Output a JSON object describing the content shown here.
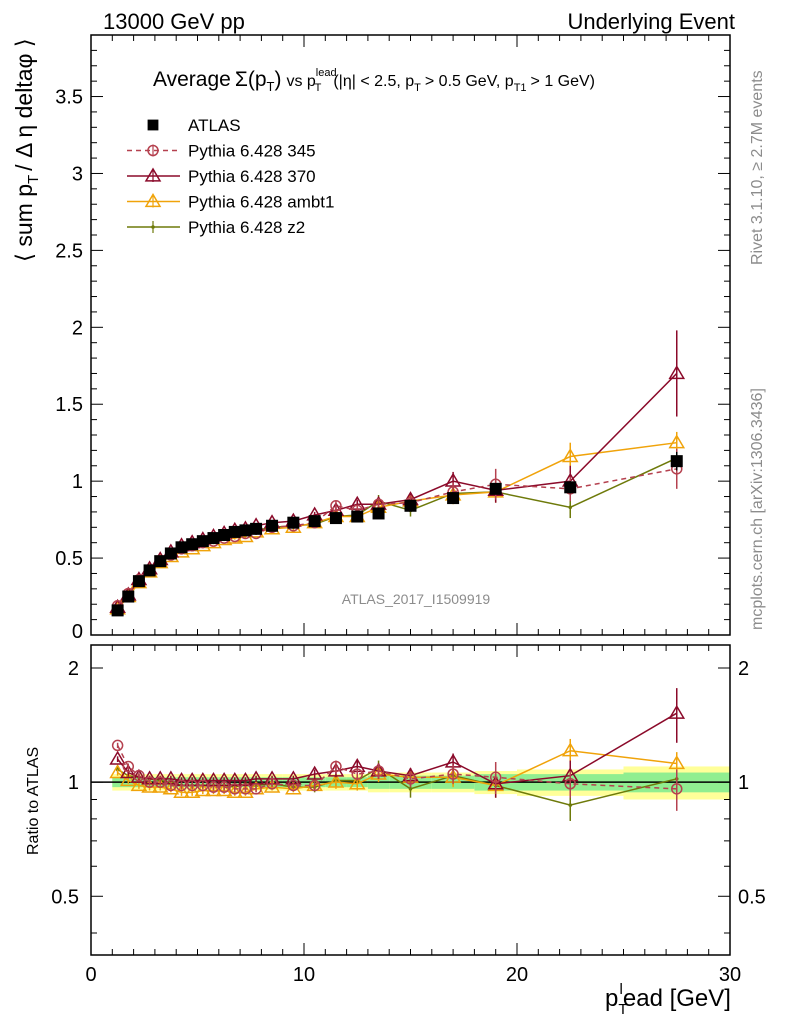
{
  "header": {
    "left": "13000 GeV pp",
    "right": "Underlying Event"
  },
  "side": {
    "rivet": "Rivet 3.1.10, ≥ 2.7M events",
    "mcplots": "mcplots.cern.ch [arXiv:1306.3436]"
  },
  "title": {
    "prefix": "Average",
    "sigma": "Σ(p",
    "t_sub": "T",
    "close": ")",
    "vs": "vs p",
    "lead_sup": "lead",
    "lead_sub": "T",
    "cuts1": "(|η| < 2.5, p",
    "cuts_sub1": "T",
    "cuts2": "> 0.5 GeV, p",
    "cuts_sub2": "T1",
    "cuts3": "> 1 GeV)"
  },
  "watermark": "ATLAS_2017_I1509919",
  "axes": {
    "ylabel_main": "⟨ sum p",
    "ylabel_main_sub": "T",
    "ylabel_main_rest": "/ Δ η deltaφ ⟩",
    "ylabel_ratio": "Ratio to ATLAS",
    "xlabel_p": "p",
    "xlabel_sub": "T",
    "xlabel_sup": "l",
    "xlabel_rest": "ead [GeV]"
  },
  "colors": {
    "atlas": "#000000",
    "py345": "#b5414f",
    "py370": "#8b0a2a",
    "ambt1": "#f0a30a",
    "z2": "#6e7a0a",
    "band_inner": "#90ee90",
    "band_outer": "#ffff99"
  },
  "chart_data": [
    {
      "type": "scatter",
      "panel": "main",
      "xlim": [
        0,
        30
      ],
      "ylim": [
        0,
        3.9
      ],
      "x_ticks": [
        "0",
        "10",
        "20",
        "30"
      ],
      "y_ticks": [
        "0.5",
        "1",
        "1.5",
        "2",
        "2.5",
        "3",
        "3.5"
      ],
      "x": [
        1.25,
        1.75,
        2.25,
        2.75,
        3.25,
        3.75,
        4.25,
        4.75,
        5.25,
        5.75,
        6.25,
        6.75,
        7.25,
        7.75,
        8.5,
        9.5,
        10.5,
        11.5,
        12.5,
        13.5,
        15,
        17,
        19,
        22.5,
        27.5
      ],
      "series": [
        {
          "name": "ATLAS",
          "key": "atlas",
          "marker": "square",
          "values": [
            0.16,
            0.25,
            0.35,
            0.42,
            0.48,
            0.53,
            0.57,
            0.59,
            0.61,
            0.63,
            0.65,
            0.67,
            0.68,
            0.69,
            0.71,
            0.73,
            0.74,
            0.76,
            0.77,
            0.79,
            0.84,
            0.89,
            0.95,
            0.96,
            1.13
          ],
          "errors": [
            0.01,
            0.01,
            0.01,
            0.01,
            0.01,
            0.01,
            0.01,
            0.01,
            0.01,
            0.01,
            0.01,
            0.01,
            0.01,
            0.01,
            0.01,
            0.01,
            0.01,
            0.01,
            0.01,
            0.02,
            0.02,
            0.02,
            0.03,
            0.04,
            0.06
          ]
        },
        {
          "name": "Pythia 6.428 345",
          "key": "py345",
          "marker": "circle",
          "dashed": true,
          "values": [
            0.19,
            0.27,
            0.36,
            0.42,
            0.48,
            0.52,
            0.56,
            0.58,
            0.6,
            0.61,
            0.63,
            0.64,
            0.66,
            0.66,
            0.7,
            0.71,
            0.73,
            0.84,
            0.81,
            0.85,
            0.86,
            0.93,
            0.98,
            0.95,
            1.08
          ],
          "errors": [
            0.01,
            0.01,
            0.01,
            0.01,
            0.01,
            0.01,
            0.01,
            0.01,
            0.01,
            0.01,
            0.01,
            0.01,
            0.01,
            0.01,
            0.01,
            0.02,
            0.02,
            0.03,
            0.03,
            0.04,
            0.05,
            0.06,
            0.1,
            0.08,
            0.13
          ]
        },
        {
          "name": "Pythia 6.428 370",
          "key": "py370",
          "marker": "triangle",
          "values": [
            0.18,
            0.26,
            0.36,
            0.43,
            0.49,
            0.54,
            0.58,
            0.6,
            0.62,
            0.64,
            0.66,
            0.68,
            0.69,
            0.71,
            0.73,
            0.74,
            0.78,
            0.81,
            0.85,
            0.85,
            0.88,
            1.0,
            0.94,
            1.0,
            1.7
          ],
          "errors": [
            0.01,
            0.01,
            0.01,
            0.01,
            0.01,
            0.01,
            0.01,
            0.01,
            0.01,
            0.01,
            0.01,
            0.01,
            0.01,
            0.01,
            0.01,
            0.02,
            0.02,
            0.03,
            0.03,
            0.04,
            0.04,
            0.06,
            0.08,
            0.1,
            0.28
          ]
        },
        {
          "name": "Pythia 6.428 ambt1",
          "key": "ambt1",
          "marker": "triangle",
          "values": [
            0.17,
            0.25,
            0.34,
            0.41,
            0.47,
            0.51,
            0.54,
            0.56,
            0.58,
            0.6,
            0.62,
            0.63,
            0.64,
            0.67,
            0.69,
            0.7,
            0.73,
            0.77,
            0.77,
            0.83,
            0.87,
            0.91,
            0.93,
            1.16,
            1.25
          ],
          "errors": [
            0.01,
            0.01,
            0.01,
            0.01,
            0.01,
            0.01,
            0.01,
            0.01,
            0.01,
            0.01,
            0.01,
            0.01,
            0.01,
            0.01,
            0.01,
            0.02,
            0.02,
            0.03,
            0.03,
            0.04,
            0.04,
            0.06,
            0.07,
            0.09,
            0.07
          ]
        },
        {
          "name": "Pythia 6.428 z2",
          "key": "z2",
          "marker": "dot",
          "values": [
            0.17,
            0.26,
            0.36,
            0.43,
            0.49,
            0.53,
            0.56,
            0.58,
            0.6,
            0.62,
            0.64,
            0.65,
            0.67,
            0.68,
            0.7,
            0.71,
            0.72,
            0.77,
            0.78,
            0.87,
            0.81,
            0.92,
            0.93,
            0.83,
            1.15
          ],
          "errors": [
            0.01,
            0.01,
            0.01,
            0.01,
            0.01,
            0.01,
            0.01,
            0.01,
            0.01,
            0.01,
            0.01,
            0.01,
            0.01,
            0.01,
            0.01,
            0.02,
            0.02,
            0.03,
            0.03,
            0.04,
            0.04,
            0.05,
            0.06,
            0.07,
            0.1
          ]
        }
      ]
    },
    {
      "type": "scatter",
      "panel": "ratio",
      "ylabel": "Ratio to ATLAS",
      "xlim": [
        0,
        30
      ],
      "ylim": [
        0.35,
        2.3
      ],
      "log_y": true,
      "x_ticks": [
        "0",
        "10",
        "20",
        "30"
      ],
      "y_ticks": [
        "0.5",
        "1",
        "2"
      ],
      "band_edges": [
        1,
        1.5,
        2,
        2.5,
        3,
        3.5,
        4,
        4.5,
        5,
        5.5,
        6,
        6.5,
        7,
        7.5,
        8,
        9,
        10,
        11,
        12,
        13,
        14,
        16,
        18,
        20,
        25,
        30
      ],
      "band_inner": [
        0.03,
        0.03,
        0.03,
        0.03,
        0.03,
        0.03,
        0.03,
        0.03,
        0.03,
        0.03,
        0.03,
        0.03,
        0.03,
        0.03,
        0.03,
        0.03,
        0.03,
        0.03,
        0.03,
        0.04,
        0.04,
        0.04,
        0.05,
        0.05,
        0.06
      ],
      "band_outer": [
        0.05,
        0.05,
        0.05,
        0.05,
        0.05,
        0.05,
        0.05,
        0.05,
        0.05,
        0.05,
        0.05,
        0.05,
        0.05,
        0.05,
        0.05,
        0.05,
        0.05,
        0.05,
        0.05,
        0.06,
        0.06,
        0.06,
        0.07,
        0.08,
        0.1
      ],
      "x": [
        1.25,
        1.75,
        2.25,
        2.75,
        3.25,
        3.75,
        4.25,
        4.75,
        5.25,
        5.75,
        6.25,
        6.75,
        7.25,
        7.75,
        8.5,
        9.5,
        10.5,
        11.5,
        12.5,
        13.5,
        15,
        17,
        19,
        22.5,
        27.5
      ],
      "series": [
        {
          "name": "Pythia 6.428 345",
          "key": "py345",
          "marker": "circle",
          "dashed": true,
          "values": [
            1.25,
            1.1,
            1.04,
            1.0,
            1.0,
            0.98,
            0.98,
            0.98,
            0.98,
            0.97,
            0.97,
            0.96,
            0.96,
            0.96,
            0.99,
            0.98,
            0.98,
            1.1,
            1.05,
            1.07,
            1.02,
            1.05,
            1.03,
            0.99,
            0.96
          ],
          "errors": [
            0.02,
            0.02,
            0.02,
            0.02,
            0.02,
            0.02,
            0.02,
            0.02,
            0.02,
            0.02,
            0.02,
            0.02,
            0.02,
            0.02,
            0.02,
            0.02,
            0.03,
            0.04,
            0.04,
            0.05,
            0.05,
            0.06,
            0.1,
            0.08,
            0.12
          ]
        },
        {
          "name": "Pythia 6.428 370",
          "key": "py370",
          "marker": "triangle",
          "values": [
            1.15,
            1.06,
            1.03,
            1.02,
            1.02,
            1.02,
            1.01,
            1.01,
            1.01,
            1.01,
            1.01,
            1.01,
            1.01,
            1.02,
            1.02,
            1.02,
            1.05,
            1.07,
            1.1,
            1.07,
            1.04,
            1.13,
            0.99,
            1.04,
            1.52
          ],
          "errors": [
            0.02,
            0.02,
            0.02,
            0.02,
            0.02,
            0.02,
            0.02,
            0.02,
            0.02,
            0.02,
            0.02,
            0.02,
            0.02,
            0.02,
            0.02,
            0.02,
            0.03,
            0.04,
            0.04,
            0.05,
            0.05,
            0.06,
            0.08,
            0.1,
            0.25
          ]
        },
        {
          "name": "Pythia 6.428 ambt1",
          "key": "ambt1",
          "marker": "triangle",
          "values": [
            1.06,
            1.01,
            0.98,
            0.97,
            0.97,
            0.96,
            0.94,
            0.94,
            0.95,
            0.95,
            0.95,
            0.94,
            0.94,
            0.96,
            0.97,
            0.96,
            0.98,
            1.0,
            0.99,
            1.05,
            1.03,
            1.03,
            0.98,
            1.21,
            1.12
          ],
          "errors": [
            0.02,
            0.02,
            0.02,
            0.02,
            0.02,
            0.02,
            0.02,
            0.02,
            0.02,
            0.02,
            0.02,
            0.02,
            0.02,
            0.02,
            0.02,
            0.02,
            0.03,
            0.04,
            0.04,
            0.05,
            0.05,
            0.06,
            0.07,
            0.09,
            0.08
          ]
        },
        {
          "name": "Pythia 6.428 z2",
          "key": "z2",
          "marker": "dot",
          "values": [
            1.08,
            1.04,
            1.03,
            1.02,
            1.01,
            1.0,
            0.98,
            0.98,
            0.98,
            0.98,
            0.98,
            0.97,
            0.99,
            0.98,
            0.99,
            0.97,
            0.97,
            1.01,
            1.01,
            1.09,
            0.96,
            1.04,
            0.98,
            0.87,
            1.02
          ],
          "errors": [
            0.02,
            0.02,
            0.02,
            0.02,
            0.02,
            0.02,
            0.02,
            0.02,
            0.02,
            0.02,
            0.02,
            0.02,
            0.02,
            0.02,
            0.02,
            0.02,
            0.03,
            0.04,
            0.04,
            0.05,
            0.05,
            0.06,
            0.07,
            0.08,
            0.12
          ]
        }
      ]
    }
  ]
}
